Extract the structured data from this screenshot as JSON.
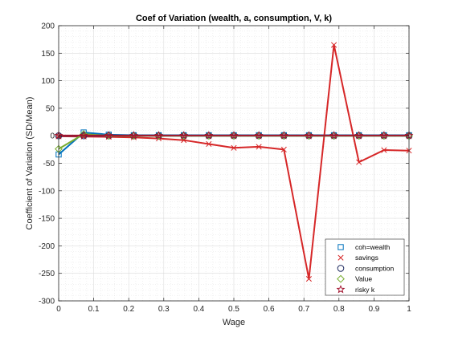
{
  "chart_data": {
    "type": "line",
    "title": "Coef of Variation (wealth, a, consumption, V, k)",
    "xlabel": "Wage",
    "ylabel": "Coefficient of Variation (SD/Mean)",
    "xlim": [
      0,
      1
    ],
    "ylim": [
      -300,
      200
    ],
    "xticks": [
      0,
      0.1,
      0.2,
      0.3,
      0.4,
      0.5,
      0.6,
      0.7,
      0.8,
      0.9,
      1
    ],
    "xtick_labels": [
      "0",
      "0.1",
      "0.2",
      "0.3",
      "0.4",
      "0.5",
      "0.6",
      "0.7",
      "0.8",
      "0.9",
      "1"
    ],
    "yticks": [
      -300,
      -250,
      -200,
      -150,
      -100,
      -50,
      0,
      50,
      100,
      150,
      200
    ],
    "ytick_labels": [
      "-300",
      "-250",
      "-200",
      "-150",
      "-100",
      "-50",
      "0",
      "50",
      "100",
      "150",
      "200"
    ],
    "grid": true,
    "legend_position": "bottom-right",
    "x": [
      0,
      0.0714,
      0.1429,
      0.2143,
      0.2857,
      0.3571,
      0.4286,
      0.5,
      0.5714,
      0.6429,
      0.7143,
      0.7857,
      0.8571,
      0.9286,
      1.0
    ],
    "series": [
      {
        "name": "coh=wealth",
        "color": "#0072bd",
        "marker": "square",
        "values": [
          -34,
          6,
          2,
          1,
          1,
          1,
          1,
          1,
          1,
          1,
          1,
          1,
          1,
          1,
          1
        ]
      },
      {
        "name": "savings",
        "color": "#d62728",
        "marker": "x",
        "values": [
          -1,
          -1.5,
          -2,
          -3,
          -5,
          -8,
          -15,
          -22,
          -20,
          -25,
          -260,
          165,
          -48,
          -26,
          -27
        ]
      },
      {
        "name": "consumption",
        "color": "#1f2a60",
        "marker": "circle",
        "values": [
          0,
          0,
          0,
          0,
          0,
          0,
          0,
          0,
          0,
          0,
          0,
          0,
          0,
          0,
          0
        ]
      },
      {
        "name": "Value",
        "color": "#77ac30",
        "marker": "diamond",
        "values": [
          -24,
          3,
          0,
          0,
          0,
          0,
          0,
          0,
          0,
          0,
          0,
          0,
          0,
          0,
          0
        ]
      },
      {
        "name": "risky k",
        "color": "#a2142f",
        "marker": "star",
        "values": [
          0.5,
          0.5,
          0.5,
          0.5,
          0.5,
          0.5,
          0.5,
          0.5,
          0.5,
          0.5,
          0.5,
          0.5,
          0.5,
          0.5,
          0.5
        ]
      }
    ]
  }
}
